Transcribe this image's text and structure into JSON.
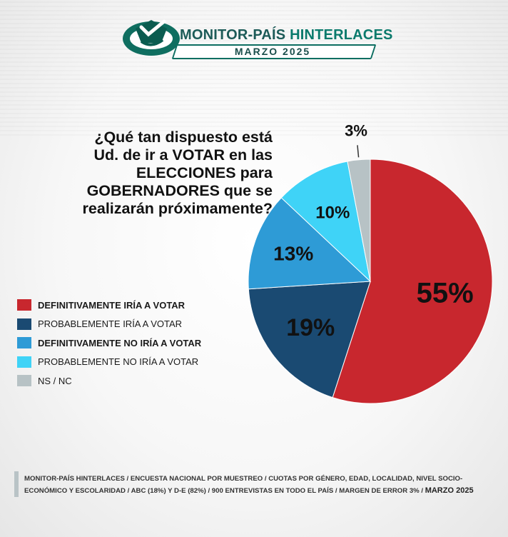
{
  "header": {
    "brand_part1": "MONITOR-PAÍS",
    "brand_part2": "HINTERLACES",
    "month": "MARZO 2025"
  },
  "question": {
    "line1": "¿Qué tan dispuesto está",
    "line2": "Ud. de ir a VOTAR en las",
    "line3": "ELECCIONES para",
    "line4": "GOBERNADORES que se",
    "line5": "realizarán próximamente?"
  },
  "chart_data": {
    "type": "pie",
    "title": "",
    "slices": [
      {
        "label": "DEFINITIVAMENTE IRÍA A VOTAR",
        "value": 55,
        "display": "55%",
        "color": "#c8272e"
      },
      {
        "label": "PROBABLEMENTE IRÍA A VOTAR",
        "value": 19,
        "display": "19%",
        "color": "#1a4a72"
      },
      {
        "label": "DEFINITIVAMENTE NO IRÍA A VOTAR",
        "value": 13,
        "display": "13%",
        "color": "#2e9bd6"
      },
      {
        "label": "PROBABLEMENTE NO IRÍA A VOTAR",
        "value": 10,
        "display": "10%",
        "color": "#3fd3f7"
      },
      {
        "label": "NS / NC",
        "value": 3,
        "display": "3%",
        "color": "#b7c2c5"
      }
    ],
    "legend_position": "left"
  },
  "footer": {
    "text": "MONITOR-PAÍS HINTERLACES / ENCUESTA NACIONAL POR MUESTREO / CUOTAS POR GÉNERO, EDAD, LOCALIDAD, NIVEL SOCIO-ECONÓMICO Y ESCOLARIDAD / ABC (18%) Y D-E (82%) / 900 ENTREVISTAS EN TODO EL PAÍS / MARGEN DE ERROR 3% /",
    "month": "MARZO 2025"
  }
}
